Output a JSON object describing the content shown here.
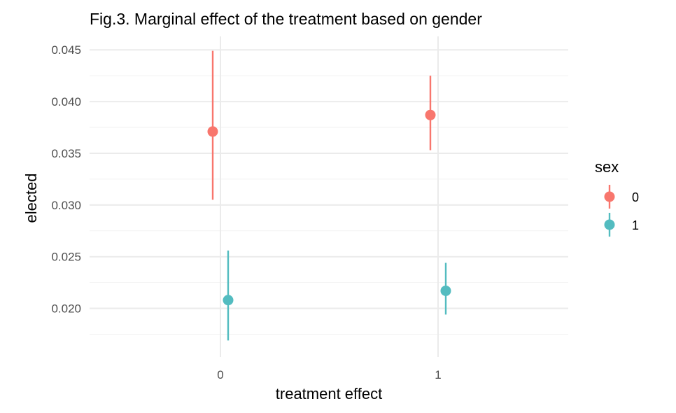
{
  "chart_data": {
    "type": "pointrange",
    "title": "Fig.3. Marginal effect of the treatment based on gender",
    "xlabel": "treatment effect",
    "ylabel": "elected",
    "categories": [
      "0",
      "1"
    ],
    "ylim": [
      0.0153,
      0.0463
    ],
    "y_ticks": [
      0.02,
      0.025,
      0.03,
      0.035,
      0.04,
      0.045
    ],
    "y_tick_labels": [
      "0.020",
      "0.025",
      "0.030",
      "0.035",
      "0.040",
      "0.045"
    ],
    "grid": true,
    "legend": {
      "title": "sex",
      "position": "right"
    },
    "series": [
      {
        "name": "0",
        "color": "#F8766D",
        "points": [
          {
            "x": "0",
            "y": 0.0371,
            "low": 0.0305,
            "high": 0.0449
          },
          {
            "x": "1",
            "y": 0.0387,
            "low": 0.0353,
            "high": 0.0425
          }
        ]
      },
      {
        "name": "1",
        "color": "#53BCC0",
        "points": [
          {
            "x": "0",
            "y": 0.0208,
            "low": 0.0169,
            "high": 0.0256
          },
          {
            "x": "1",
            "y": 0.0217,
            "low": 0.0194,
            "high": 0.0244
          }
        ]
      }
    ]
  }
}
